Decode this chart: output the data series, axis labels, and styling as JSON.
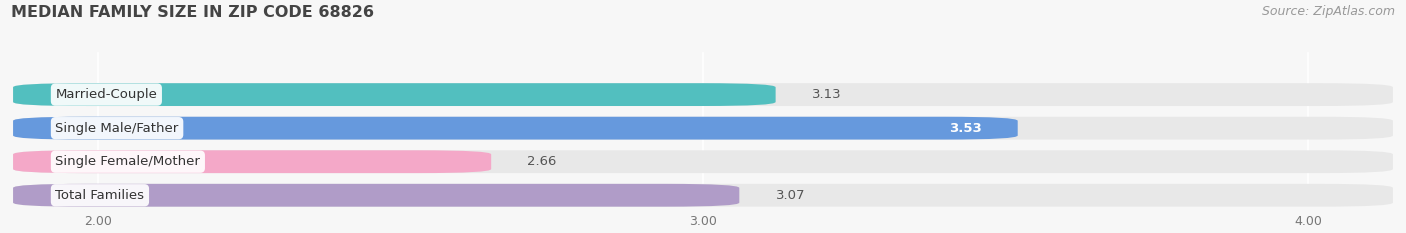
{
  "title": "MEDIAN FAMILY SIZE IN ZIP CODE 68826",
  "source": "Source: ZipAtlas.com",
  "categories": [
    "Married-Couple",
    "Single Male/Father",
    "Single Female/Mother",
    "Total Families"
  ],
  "values": [
    3.13,
    3.53,
    2.66,
    3.07
  ],
  "bar_colors": [
    "#52bfbf",
    "#6699dd",
    "#f4a8c8",
    "#b09cc8"
  ],
  "value_text_colors": [
    "#555555",
    "#ffffff",
    "#555555",
    "#555555"
  ],
  "xlim_min": 1.85,
  "xlim_max": 4.15,
  "xticks": [
    2.0,
    3.0,
    4.0
  ],
  "bg_color": "#f7f7f7",
  "bar_bg_color": "#e8e8e8",
  "title_fontsize": 11.5,
  "label_fontsize": 9.5,
  "value_fontsize": 9.5,
  "source_fontsize": 9,
  "bar_height": 0.68,
  "bar_gap": 0.18
}
